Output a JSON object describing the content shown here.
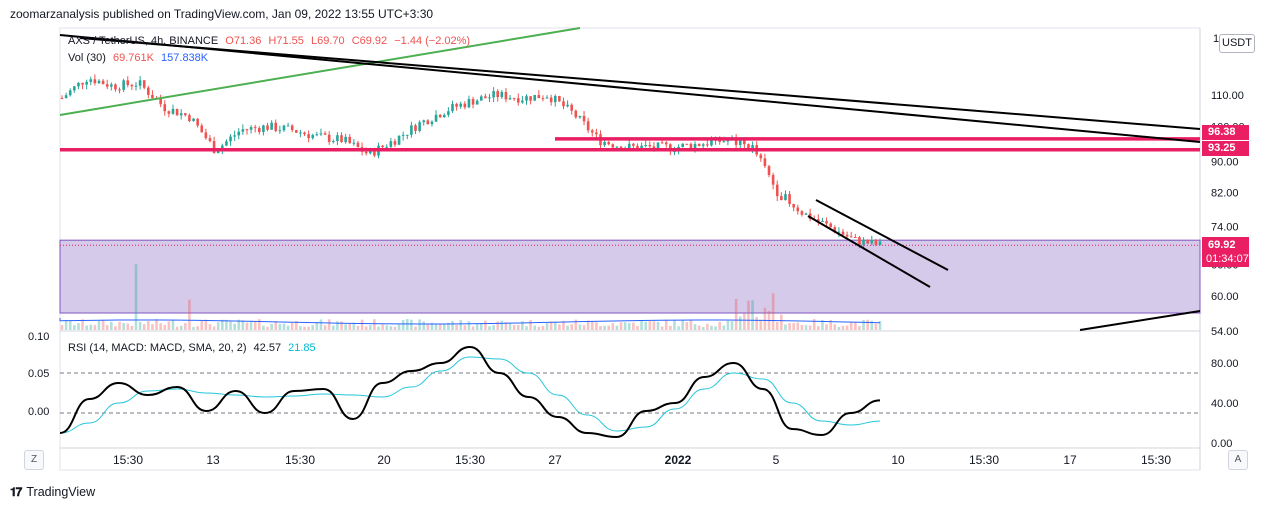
{
  "header": {
    "publisher_text": "zoomarzanalysis published on TradingView.com, Jan 09, 2022 13:55 UTC+3:30"
  },
  "legend": {
    "symbol": "AXS / TetherUS, 4h, BINANCE",
    "open": "O71.36",
    "high": "H71.55",
    "low": "L69.70",
    "close": "C69.92",
    "change": "−1.44 (−2.02%)",
    "volume_label": "Vol (30)",
    "volume_value": "69.761K",
    "volume_ma": "157.838K",
    "rsi_label": "RSI (14, MACD: MACD, SMA, 20, 2)",
    "rsi_value": "42.57",
    "rsi_ma": "21.85"
  },
  "price_axis": {
    "currency_button": "USDT",
    "ticks": [
      "110.00",
      "100.00",
      "90.00",
      "82.00",
      "74.00",
      "66.00",
      "60.00",
      "54.00"
    ],
    "top_partial": "1"
  },
  "tags": {
    "level_high": "96.38",
    "level_low": "93.25",
    "last_price": "69.92",
    "countdown": "01:34:07"
  },
  "rsi_axis": {
    "ticks": [
      "80.00",
      "40.00",
      "0.00"
    ]
  },
  "left_axis": {
    "ticks": [
      "0.10",
      "0.05",
      "0.00"
    ]
  },
  "time_axis": {
    "ticks": [
      "15:30",
      "13",
      "15:30",
      "20",
      "15:30",
      "27",
      "2022",
      "5",
      "10",
      "15:30",
      "17",
      "15:30"
    ]
  },
  "buttons": {
    "z": "Z",
    "a": "A"
  },
  "footer": {
    "brand": "TradingView"
  },
  "colors": {
    "bull": "#26a69a",
    "bear": "#ef5350",
    "level": "#e91e63",
    "zone": "#d1c4e9",
    "trend_green": "#4caf50",
    "rsi_line": "#000000",
    "rsi_ma_line": "#26c6da"
  },
  "chart_data": [
    {
      "type": "candlestick",
      "title": "AXS / TetherUS, 4h, BINANCE",
      "y_scale": "log",
      "ohlc_last": {
        "open": 71.36,
        "high": 71.55,
        "low": 69.7,
        "close": 69.92,
        "change": -1.44,
        "change_pct": -2.02
      },
      "x": [
        "Dec 08",
        "Dec 09",
        "Dec 10",
        "Dec 11",
        "Dec 12",
        "Dec 13",
        "Dec 14",
        "Dec 15",
        "Dec 16",
        "Dec 17",
        "Dec 18",
        "Dec 19",
        "Dec 20",
        "Dec 21",
        "Dec 22",
        "Dec 23",
        "Dec 24",
        "Dec 25",
        "Dec 26",
        "Dec 27",
        "Dec 28",
        "Dec 29",
        "Dec 30",
        "Dec 31",
        "Jan 01",
        "Jan 02",
        "Jan 03",
        "Jan 04",
        "Jan 05",
        "Jan 06",
        "Jan 07",
        "Jan 08",
        "Jan 09"
      ],
      "close_path": [
        109,
        116,
        113,
        114,
        106,
        103,
        93,
        99,
        100,
        99,
        97,
        96,
        92,
        96,
        101,
        105,
        108,
        110,
        109,
        110,
        104,
        96,
        94,
        94,
        94,
        95,
        96,
        94,
        82,
        77,
        74,
        71,
        69.92
      ],
      "horizontal_levels": [
        96.38,
        93.25
      ],
      "support_zone": [
        57,
        71
      ],
      "ylim": [
        52,
        125
      ]
    },
    {
      "type": "line",
      "title": "RSI (14, MACD: MACD, SMA, 20, 2)",
      "last_value": 42.57,
      "ma_last_value": 21.85,
      "ylim": [
        0,
        100
      ],
      "bands": [
        30,
        70
      ],
      "series": [
        {
          "name": "RSI",
          "values": [
            10,
            44,
            60,
            48,
            56,
            32,
            52,
            30,
            52,
            54,
            24,
            60,
            72,
            80,
            96,
            70,
            46,
            26,
            10,
            6,
            32,
            40,
            66,
            80,
            54,
            14,
            8,
            30,
            42.57
          ]
        },
        {
          "name": "MA",
          "values": [
            10,
            20,
            40,
            52,
            54,
            50,
            48,
            46,
            47,
            49,
            48,
            46,
            56,
            72,
            86,
            84,
            70,
            48,
            28,
            12,
            16,
            34,
            54,
            70,
            64,
            40,
            22,
            18,
            21.85
          ]
        }
      ]
    }
  ]
}
